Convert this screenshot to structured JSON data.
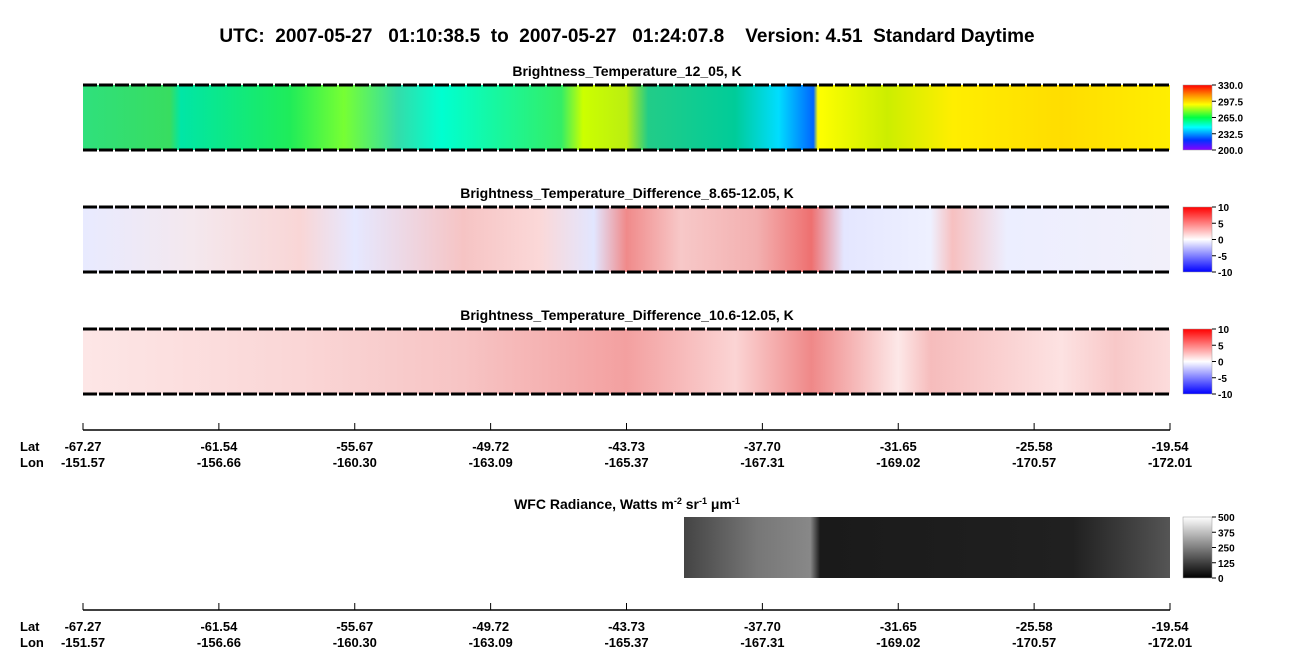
{
  "title": "UTC:  2007-05-27   01:10:38.5  to  2007-05-27   01:24:07.8    Version: 4.51  Standard Daytime",
  "panels": [
    {
      "title": "Brightness_Temperature_12_05, K",
      "colorbar": [
        "330.0",
        "297.5",
        "265.0",
        "232.5",
        "200.0"
      ]
    },
    {
      "title": "Brightness_Temperature_Difference_8.65-12.05, K",
      "colorbar": [
        "10",
        "5",
        "0",
        "-5",
        "-10"
      ]
    },
    {
      "title": "Brightness_Temperature_Difference_10.6-12.05, K",
      "colorbar": [
        "10",
        "5",
        "0",
        "-5",
        "-10"
      ]
    }
  ],
  "axes": [
    {
      "lat_label": "Lat",
      "lon_label": "Lon",
      "lat": [
        "-67.27",
        "-61.54",
        "-55.67",
        "-49.72",
        "-43.73",
        "-37.70",
        "-31.65",
        "-25.58",
        "-19.54"
      ],
      "lon": [
        "-151.57",
        "-156.66",
        "-160.30",
        "-163.09",
        "-165.37",
        "-167.31",
        "-169.02",
        "-170.57",
        "-172.01"
      ]
    },
    {
      "lat_label": "Lat",
      "lon_label": "Lon",
      "lat": [
        "-67.27",
        "-61.54",
        "-55.67",
        "-49.72",
        "-43.73",
        "-37.70",
        "-31.65",
        "-25.58",
        "-19.54"
      ],
      "lon": [
        "-151.57",
        "-156.66",
        "-160.30",
        "-163.09",
        "-165.37",
        "-167.31",
        "-169.02",
        "-170.57",
        "-172.01"
      ]
    }
  ],
  "wfc": {
    "title_parts": [
      "WFC Radiance, Watts m",
      "-2",
      " sr",
      "-1",
      " μm",
      "-1"
    ],
    "colorbar": [
      "500",
      "375",
      "250",
      "125",
      "0"
    ]
  }
}
